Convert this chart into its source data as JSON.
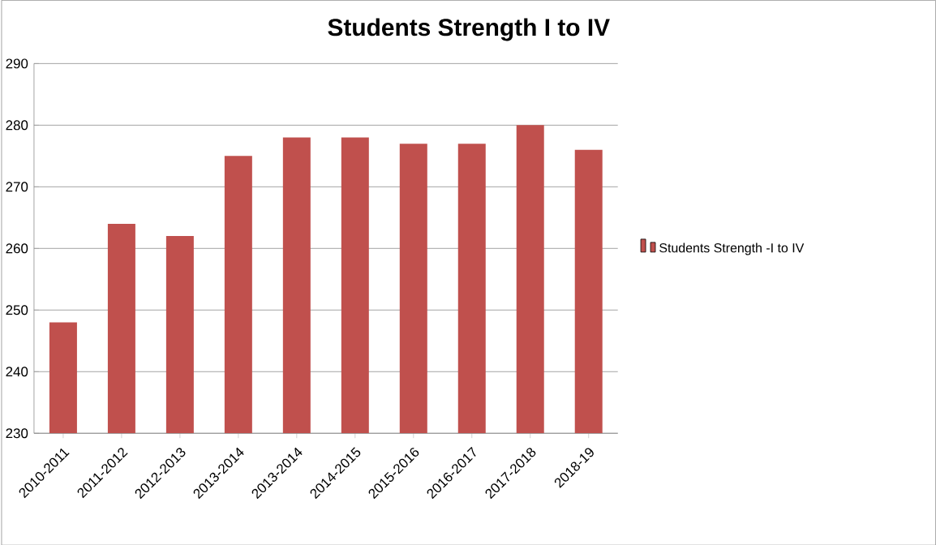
{
  "chart_data": {
    "type": "bar",
    "title": "Students Strength I to IV",
    "categories": [
      "2010-2011",
      "2011-2012",
      "2012-2013",
      "2013-2014",
      "2013-2014",
      "2014-2015",
      "2015-2016",
      "2016-2017",
      "2017-2018",
      "2018-19"
    ],
    "series": [
      {
        "name": "Students Strength -I to IV",
        "color": "#c0504d",
        "values": [
          248,
          264,
          262,
          275,
          278,
          278,
          277,
          277,
          280,
          276
        ]
      }
    ],
    "ylim": [
      230,
      290
    ],
    "yticks": [
      230,
      240,
      250,
      260,
      270,
      280,
      290
    ],
    "grid": "y",
    "legend": "right"
  }
}
